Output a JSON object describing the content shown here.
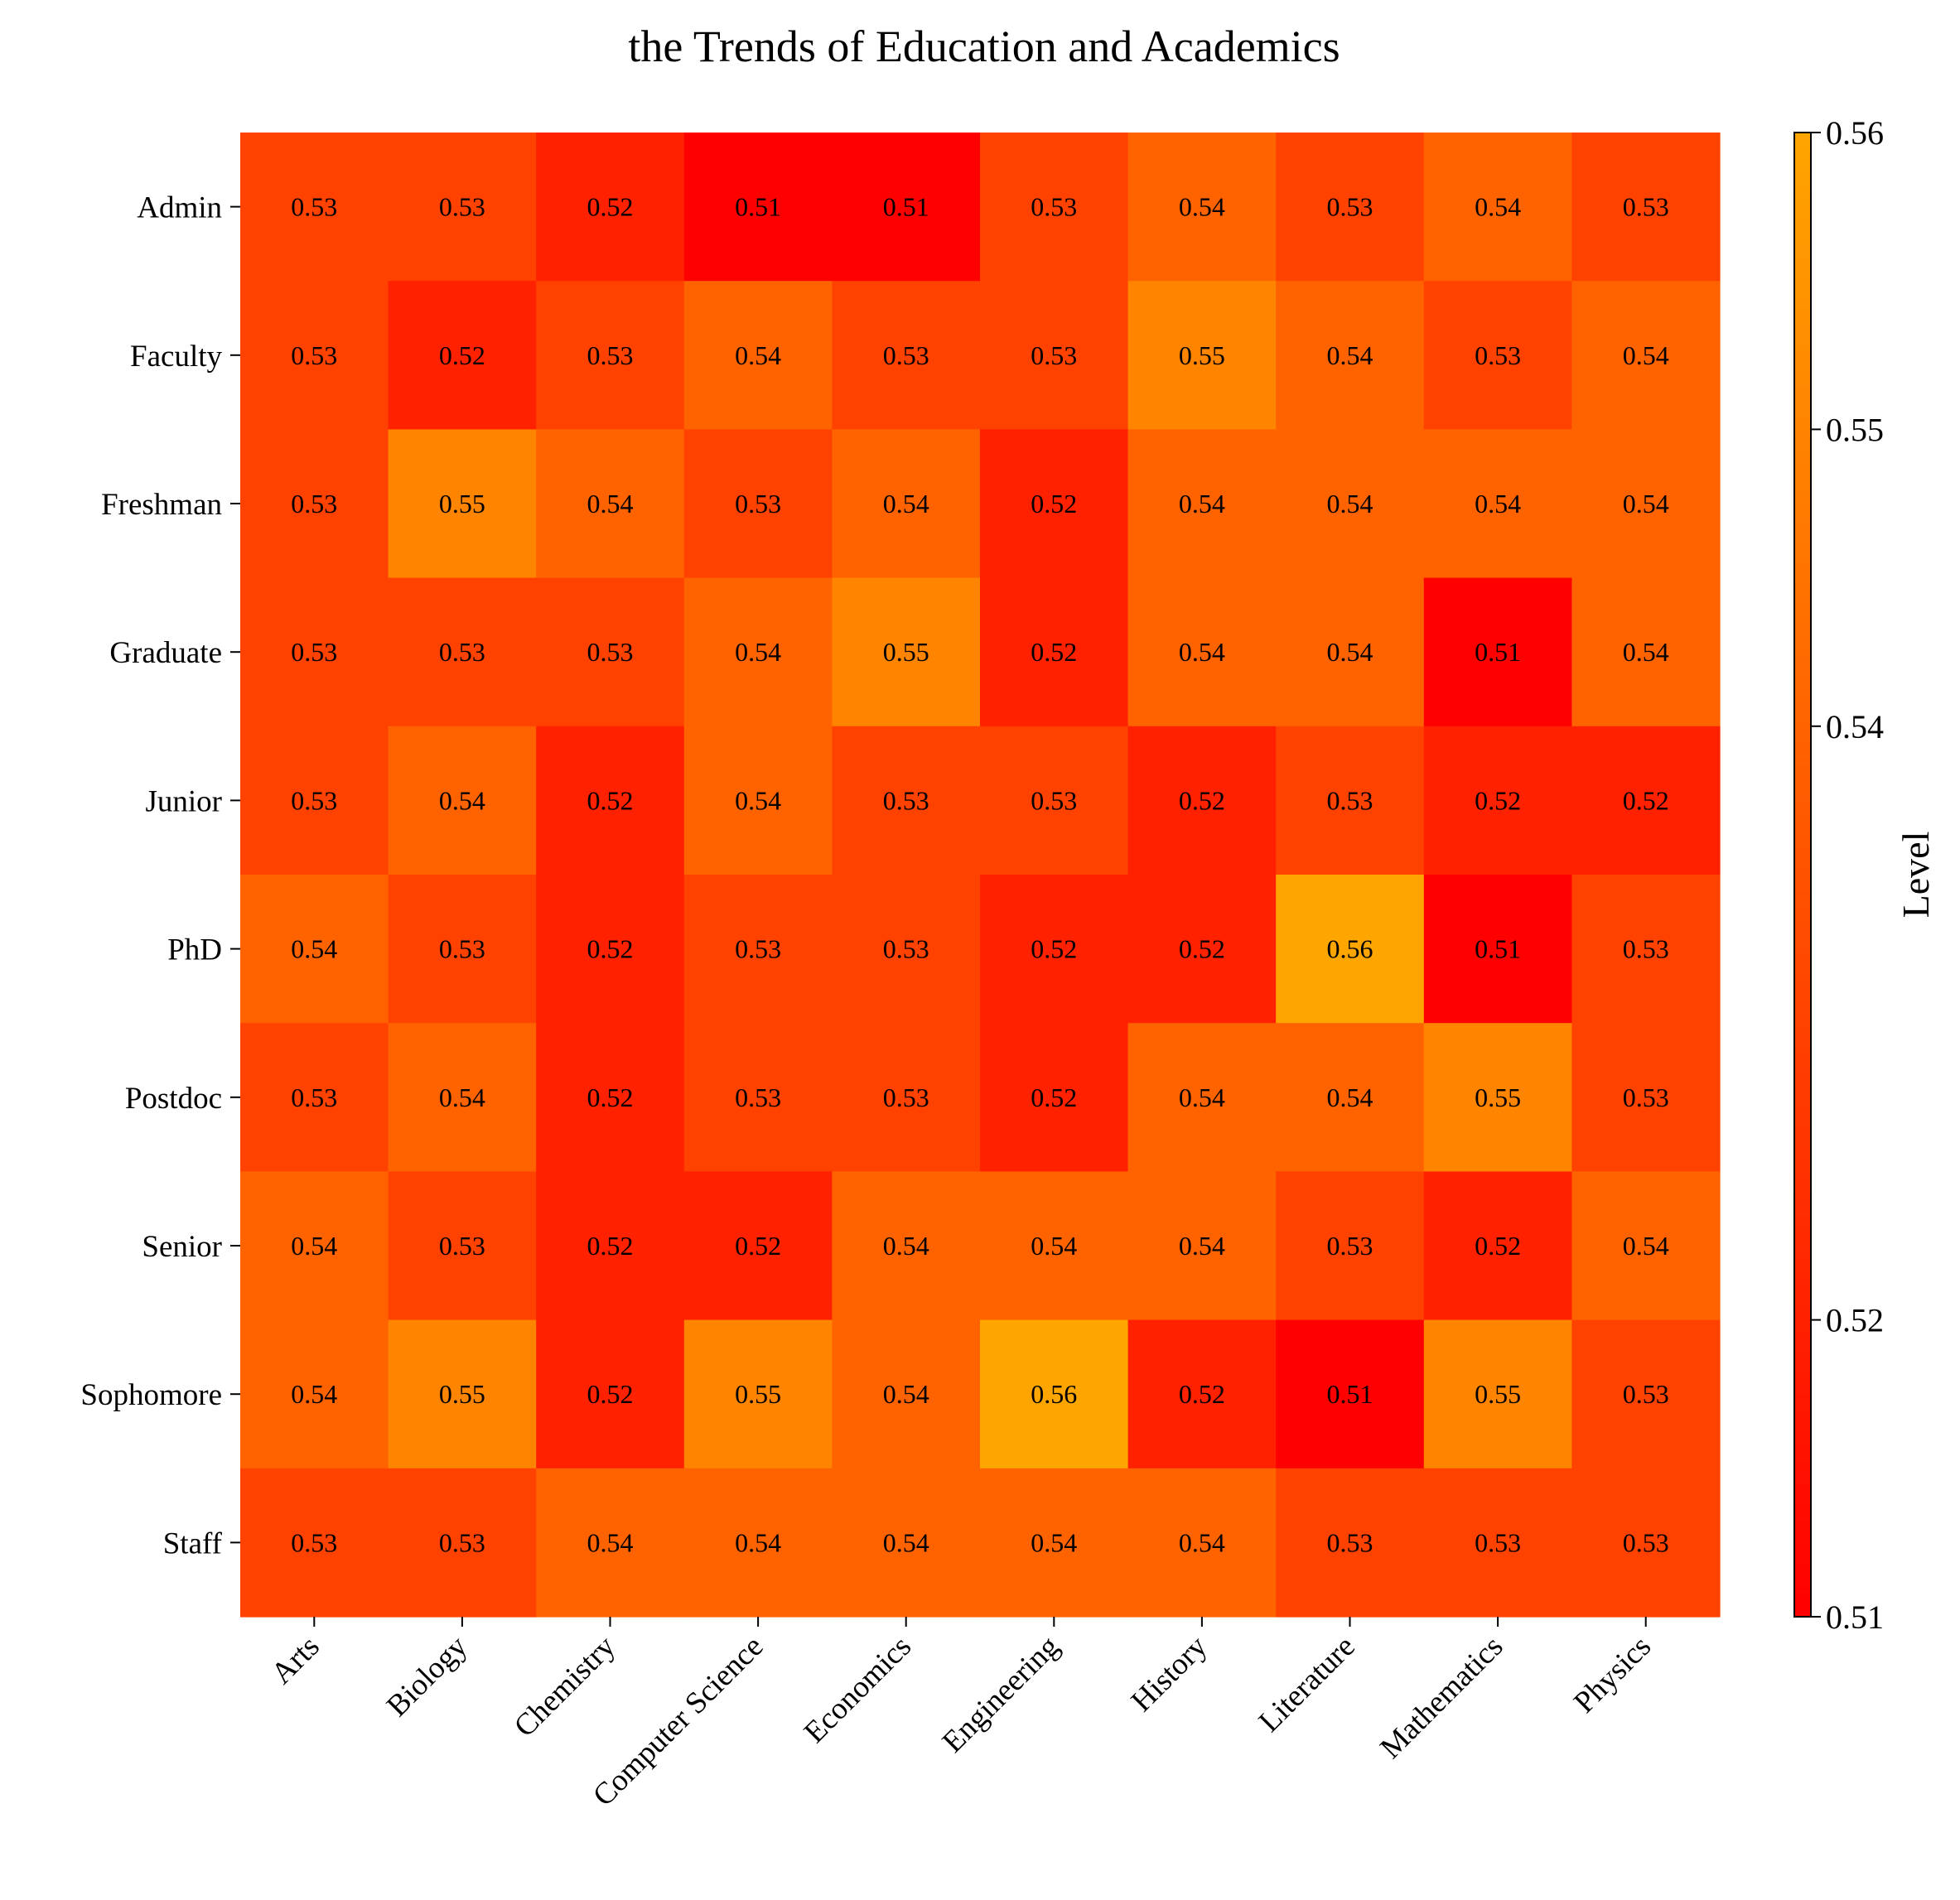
{
  "chart_data": {
    "type": "heatmap",
    "title": "the Trends of Education and Academics",
    "x_categories": [
      "Arts",
      "Biology",
      "Chemistry",
      "Computer Science",
      "Economics",
      "Engineering",
      "History",
      "Literature",
      "Mathematics",
      "Physics"
    ],
    "y_categories": [
      "Admin",
      "Faculty",
      "Freshman",
      "Graduate",
      "Junior",
      "PhD",
      "Postdoc",
      "Senior",
      "Sophomore",
      "Staff"
    ],
    "values": [
      [
        0.53,
        0.53,
        0.52,
        0.51,
        0.51,
        0.53,
        0.54,
        0.53,
        0.54,
        0.53
      ],
      [
        0.53,
        0.52,
        0.53,
        0.54,
        0.53,
        0.53,
        0.55,
        0.54,
        0.53,
        0.54
      ],
      [
        0.53,
        0.55,
        0.54,
        0.53,
        0.54,
        0.52,
        0.54,
        0.54,
        0.54,
        0.54
      ],
      [
        0.53,
        0.53,
        0.53,
        0.54,
        0.55,
        0.52,
        0.54,
        0.54,
        0.51,
        0.54
      ],
      [
        0.53,
        0.54,
        0.52,
        0.54,
        0.53,
        0.53,
        0.52,
        0.53,
        0.52,
        0.52
      ],
      [
        0.54,
        0.53,
        0.52,
        0.53,
        0.53,
        0.52,
        0.52,
        0.56,
        0.51,
        0.53
      ],
      [
        0.53,
        0.54,
        0.52,
        0.53,
        0.53,
        0.52,
        0.54,
        0.54,
        0.55,
        0.53
      ],
      [
        0.54,
        0.53,
        0.52,
        0.52,
        0.54,
        0.54,
        0.54,
        0.53,
        0.52,
        0.54
      ],
      [
        0.54,
        0.55,
        0.52,
        0.55,
        0.54,
        0.56,
        0.52,
        0.51,
        0.55,
        0.53
      ],
      [
        0.53,
        0.53,
        0.54,
        0.54,
        0.54,
        0.54,
        0.54,
        0.53,
        0.53,
        0.53
      ]
    ],
    "colorbar": {
      "label": "Level",
      "range": [
        0.51,
        0.56
      ],
      "ticks": [
        "0.51",
        "0.52",
        "0.54",
        "0.55",
        "0.56"
      ],
      "colormap": [
        "#ff0000",
        "#ffa500"
      ]
    },
    "grid": false
  }
}
